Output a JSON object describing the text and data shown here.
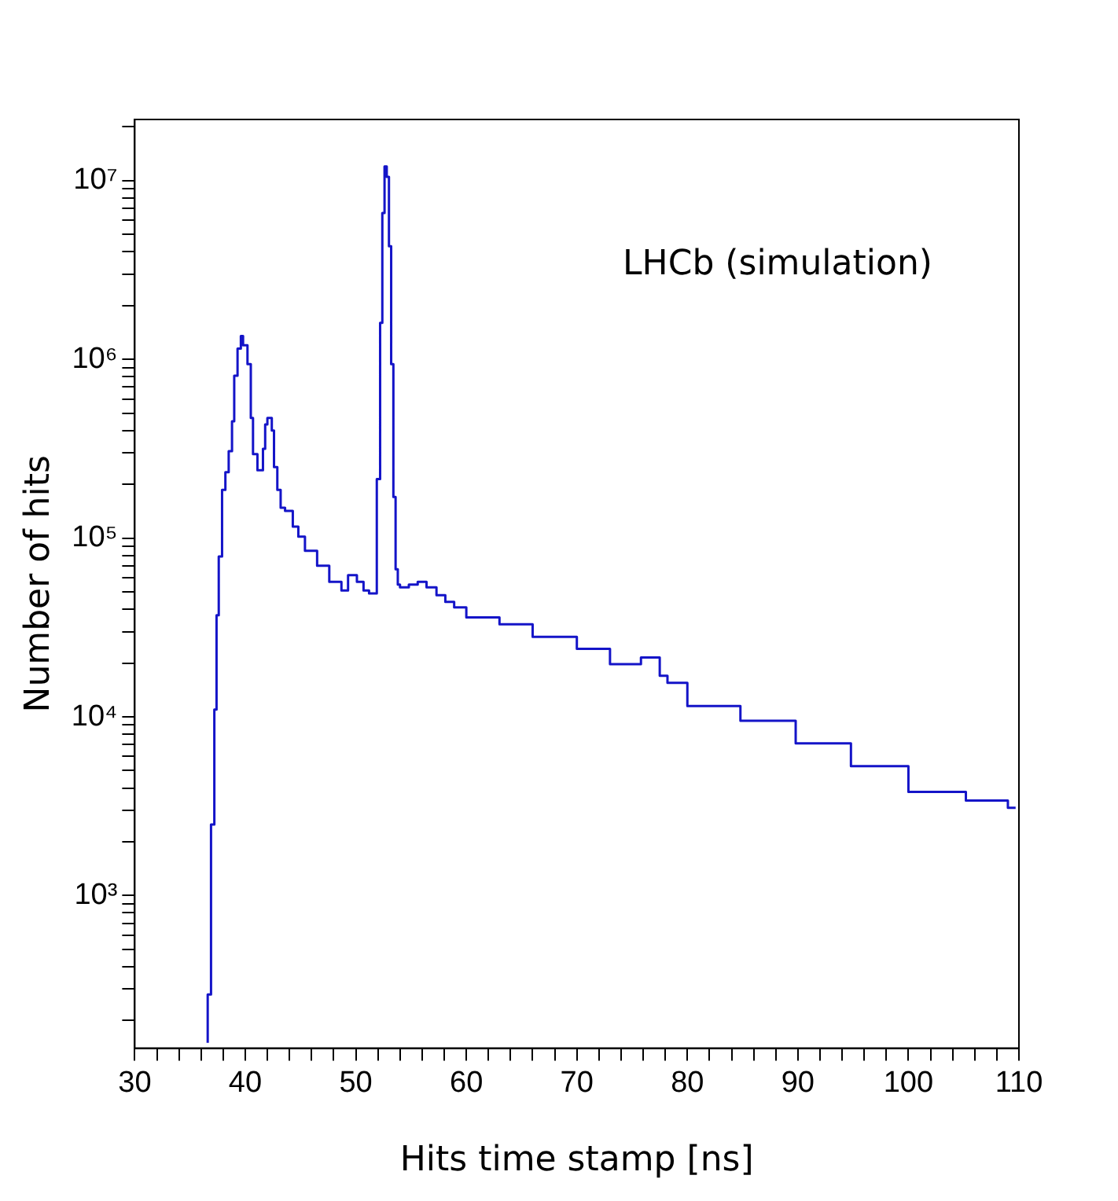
{
  "chart_data": {
    "type": "step",
    "xlabel": "Hits time stamp [ns]",
    "ylabel": "Number of hits",
    "annotations": [
      "LHCb (simulation)"
    ],
    "log": "y",
    "grid": false,
    "legend": false,
    "marker": "none",
    "line_style": "solid",
    "xlim": [
      30,
      110
    ],
    "ylim": [
      140,
      22000000
    ],
    "xticks": [
      30,
      {
        "value": 32,
        "label": null
      },
      {
        "value": 34,
        "label": null
      },
      {
        "value": 36,
        "label": null
      },
      {
        "value": 38,
        "label": null
      },
      40,
      {
        "value": 42,
        "label": null
      },
      {
        "value": 44,
        "label": null
      },
      {
        "value": 46,
        "label": null
      },
      {
        "value": 48,
        "label": null
      },
      50,
      {
        "value": 52,
        "label": null
      },
      {
        "value": 54,
        "label": null
      },
      {
        "value": 56,
        "label": null
      },
      {
        "value": 58,
        "label": null
      },
      60,
      {
        "value": 62,
        "label": null
      },
      {
        "value": 64,
        "label": null
      },
      {
        "value": 66,
        "label": null
      },
      {
        "value": 68,
        "label": null
      },
      70,
      {
        "value": 72,
        "label": null
      },
      {
        "value": 74,
        "label": null
      },
      {
        "value": 76,
        "label": null
      },
      {
        "value": 78,
        "label": null
      },
      80,
      {
        "value": 82,
        "label": null
      },
      {
        "value": 84,
        "label": null
      },
      {
        "value": 86,
        "label": null
      },
      {
        "value": 88,
        "label": null
      },
      90,
      {
        "value": 92,
        "label": null
      },
      {
        "value": 94,
        "label": null
      },
      {
        "value": 96,
        "label": null
      },
      {
        "value": 98,
        "label": null
      },
      100,
      {
        "value": 102,
        "label": null
      },
      {
        "value": 104,
        "label": null
      },
      {
        "value": 106,
        "label": null
      },
      {
        "value": 108,
        "label": null
      },
      110
    ],
    "yticks": [
      {
        "value": 200,
        "label": null
      },
      {
        "value": 300,
        "label": null
      },
      {
        "value": 400,
        "label": null
      },
      {
        "value": 500,
        "label": null
      },
      {
        "value": 600,
        "label": null
      },
      {
        "value": 700,
        "label": null
      },
      {
        "value": 800,
        "label": null
      },
      {
        "value": 900,
        "label": null
      },
      {
        "value": 1000,
        "label": "10³"
      },
      {
        "value": 2000,
        "label": null
      },
      {
        "value": 3000,
        "label": null
      },
      {
        "value": 4000,
        "label": null
      },
      {
        "value": 5000,
        "label": null
      },
      {
        "value": 6000,
        "label": null
      },
      {
        "value": 7000,
        "label": null
      },
      {
        "value": 8000,
        "label": null
      },
      {
        "value": 9000,
        "label": null
      },
      {
        "value": 10000,
        "label": "10⁴"
      },
      {
        "value": 20000,
        "label": null
      },
      {
        "value": 30000,
        "label": null
      },
      {
        "value": 40000,
        "label": null
      },
      {
        "value": 50000,
        "label": null
      },
      {
        "value": 60000,
        "label": null
      },
      {
        "value": 70000,
        "label": null
      },
      {
        "value": 80000,
        "label": null
      },
      {
        "value": 90000,
        "label": null
      },
      {
        "value": 100000,
        "label": "10⁵"
      },
      {
        "value": 200000,
        "label": null
      },
      {
        "value": 300000,
        "label": null
      },
      {
        "value": 400000,
        "label": null
      },
      {
        "value": 500000,
        "label": null
      },
      {
        "value": 600000,
        "label": null
      },
      {
        "value": 700000,
        "label": null
      },
      {
        "value": 800000,
        "label": null
      },
      {
        "value": 900000,
        "label": null
      },
      {
        "value": 1000000,
        "label": "10⁶"
      },
      {
        "value": 2000000,
        "label": null
      },
      {
        "value": 3000000,
        "label": null
      },
      {
        "value": 4000000,
        "label": null
      },
      {
        "value": 5000000,
        "label": null
      },
      {
        "value": 6000000,
        "label": null
      },
      {
        "value": 7000000,
        "label": null
      },
      {
        "value": 8000000,
        "label": null
      },
      {
        "value": 9000000,
        "label": null
      },
      {
        "value": 10000000,
        "label": "10⁷"
      },
      {
        "value": 20000000,
        "label": null
      }
    ],
    "x": [
      36.6,
      36.9,
      37.2,
      37.4,
      37.6,
      37.9,
      38.2,
      38.5,
      38.8,
      39.0,
      39.3,
      39.6,
      39.8,
      40.2,
      40.5,
      40.7,
      41.1,
      41.3,
      41.6,
      41.8,
      42.0,
      42.4,
      42.6,
      42.9,
      43.2,
      43.6,
      44.3,
      44.8,
      45.4,
      46.5,
      47.6,
      48.7,
      49.3,
      50.1,
      50.7,
      51.2,
      51.9,
      52.2,
      52.4,
      52.6,
      52.8,
      53.0,
      53.2,
      53.4,
      53.6,
      53.8,
      54.0,
      54.8,
      55.6,
      56.4,
      57.3,
      58.1,
      58.9,
      60,
      63,
      66,
      70,
      73,
      75.8,
      77.5,
      78.2,
      80,
      84.8,
      89.8,
      94.8,
      100,
      105.2,
      109.0,
      109.7
    ],
    "series": [
      {
        "color": "#1414c8",
        "values": [
          150,
          280,
          2500,
          11000,
          37000,
          79000,
          186000,
          234000,
          307000,
          450000,
          810000,
          1150000,
          1350000,
          1200000,
          940000,
          470000,
          295000,
          240000,
          240000,
          316000,
          433000,
          470000,
          400000,
          250000,
          186000,
          148000,
          142000,
          116000,
          102000,
          85000,
          70000,
          57000,
          51000,
          62000,
          57000,
          51000,
          49000,
          214000,
          1600000,
          6600000,
          12000000,
          10500000,
          4300000,
          940000,
          170000,
          67000,
          55000,
          53000,
          55000,
          57000,
          53000,
          48000,
          44000,
          41000,
          36000,
          33000,
          28000,
          24000,
          19700,
          21500,
          17000,
          15500,
          11500,
          9500,
          7100,
          5300,
          3800,
          3400,
          3100
        ]
      }
    ]
  }
}
